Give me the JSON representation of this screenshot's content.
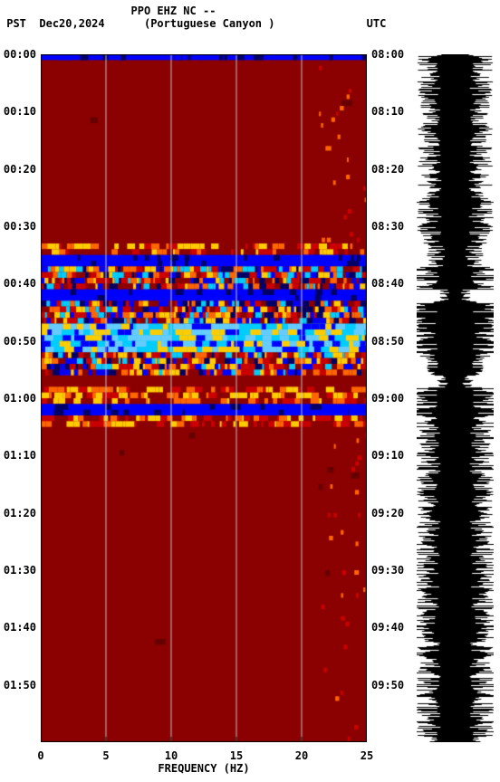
{
  "header": {
    "station": "PPO EHZ NC --",
    "tz_left": "PST",
    "date": "Dec20,2024",
    "location": "(Portuguese Canyon )",
    "tz_right": "UTC"
  },
  "spectrogram": {
    "type": "spectrogram",
    "x_axis": {
      "title": "FREQUENCY (HZ)",
      "min": 0,
      "max": 25,
      "ticks": [
        0,
        5,
        10,
        15,
        20,
        25
      ]
    },
    "time_axis": {
      "left_labels": [
        "00:00",
        "00:10",
        "00:20",
        "00:30",
        "00:40",
        "00:50",
        "01:00",
        "01:10",
        "01:20",
        "01:30",
        "01:40",
        "01:50"
      ],
      "right_labels": [
        "08:00",
        "08:10",
        "08:20",
        "08:30",
        "08:40",
        "08:50",
        "09:00",
        "09:10",
        "09:20",
        "09:30",
        "09:40",
        "09:50"
      ],
      "rows": 120
    },
    "colors": {
      "bg_low": "#8b0000",
      "dark_red": "#660000",
      "red": "#cc0000",
      "orange": "#ff6600",
      "yellow": "#ffcc00",
      "cyan": "#00ccff",
      "light_blue": "#66ccff",
      "blue": "#0000ff",
      "dark_blue": "#000066",
      "gridline": "#c0c0c0"
    },
    "bands": [
      {
        "start": 0,
        "end": 1,
        "type": "blue_band"
      },
      {
        "start": 1,
        "end": 33,
        "type": "quiet"
      },
      {
        "start": 33,
        "end": 35,
        "type": "noisy_yellow"
      },
      {
        "start": 35,
        "end": 37,
        "type": "blue_band"
      },
      {
        "start": 37,
        "end": 41,
        "type": "noisy_mixed"
      },
      {
        "start": 41,
        "end": 43,
        "type": "blue_band"
      },
      {
        "start": 43,
        "end": 47,
        "type": "very_noisy"
      },
      {
        "start": 47,
        "end": 52,
        "type": "cyan_bright"
      },
      {
        "start": 52,
        "end": 56,
        "type": "noisy_mixed"
      },
      {
        "start": 56,
        "end": 58,
        "type": "quiet"
      },
      {
        "start": 58,
        "end": 61,
        "type": "noisy_yellow"
      },
      {
        "start": 61,
        "end": 63,
        "type": "blue_band"
      },
      {
        "start": 63,
        "end": 65,
        "type": "noisy_yellow"
      },
      {
        "start": 65,
        "end": 120,
        "type": "quiet"
      }
    ]
  },
  "waveform": {
    "type": "waveform",
    "color": "#000000",
    "center_line_color": "#000000",
    "amplitude_profile": [
      {
        "start": 0,
        "end": 33,
        "amp": 0.75
      },
      {
        "start": 33,
        "end": 37,
        "amp": 0.55
      },
      {
        "start": 37,
        "end": 41,
        "amp": 0.85
      },
      {
        "start": 41,
        "end": 43,
        "amp": 0.3
      },
      {
        "start": 43,
        "end": 52,
        "amp": 0.95
      },
      {
        "start": 52,
        "end": 56,
        "amp": 0.7
      },
      {
        "start": 56,
        "end": 58,
        "amp": 0.35
      },
      {
        "start": 58,
        "end": 65,
        "amp": 0.9
      },
      {
        "start": 65,
        "end": 120,
        "amp": 0.8
      }
    ]
  }
}
